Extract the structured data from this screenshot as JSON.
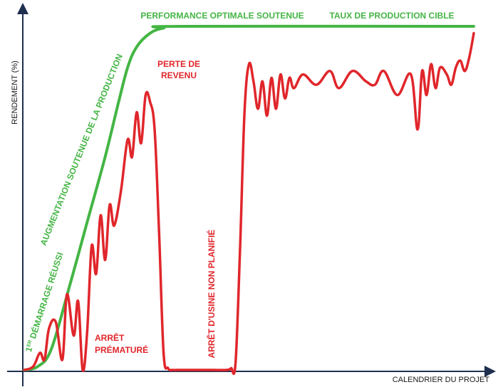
{
  "chart_data": {
    "type": "line",
    "title": "",
    "xlabel": "CALENDRIER DU PROJET",
    "ylabel": "RENDEMENT (%)",
    "xlim": [
      0,
      100
    ],
    "ylim": [
      0,
      100
    ],
    "grid": false,
    "colors": {
      "target": "#44b544",
      "actual": "#e0262b",
      "axis": "#1f2f4f"
    },
    "series": [
      {
        "key": "target",
        "x": [
          0,
          3,
          6,
          10,
          14,
          18,
          21,
          23,
          25,
          28,
          31,
          35,
          100
        ],
        "y": [
          0,
          1,
          6,
          24,
          43,
          62,
          78,
          88,
          94,
          98,
          99.5,
          100,
          100
        ]
      },
      {
        "key": "actual",
        "x": [
          0,
          2,
          3.5,
          4.5,
          5.5,
          7,
          8.5,
          9.5,
          11,
          12,
          13,
          14,
          15,
          16,
          17,
          18,
          19,
          20,
          21.5,
          23,
          24,
          25,
          26,
          27,
          28,
          29,
          30,
          31,
          32,
          33,
          34,
          35,
          36,
          37,
          38,
          39,
          40,
          42,
          45,
          46,
          47,
          48,
          49,
          50,
          51,
          52,
          53,
          54,
          55,
          56,
          57,
          58,
          59,
          60,
          62,
          65,
          68,
          70,
          73,
          76,
          78,
          80,
          83,
          86,
          87.5,
          88.5,
          89.5,
          90.5,
          91.5,
          92.5,
          94,
          95,
          96,
          97,
          98,
          99,
          100
        ],
        "y": [
          0,
          1,
          5,
          3,
          12,
          14,
          3,
          22,
          10,
          20,
          0,
          11,
          36,
          28,
          45,
          32,
          48,
          42,
          52,
          67,
          62,
          75,
          66,
          80,
          78,
          70,
          40,
          5,
          0.5,
          0,
          0,
          0,
          0,
          0,
          0,
          0,
          0,
          0,
          0,
          0.5,
          2,
          35,
          75,
          89,
          84,
          76,
          84,
          74,
          85,
          76,
          86,
          79,
          85,
          82,
          86,
          83,
          87,
          82,
          87,
          84,
          83,
          87,
          80,
          86,
          70,
          87,
          80,
          89,
          82,
          88,
          86,
          83,
          88,
          90,
          87,
          91,
          98
        ]
      }
    ],
    "annotations": {
      "optimal": "PERFORMANCE OPTIMALE SOUTENUE",
      "target_rate": "TAUX DE PRODUCTION CIBLE",
      "revenue_loss_1": "PERTE DE",
      "revenue_loss_2": "REVENU",
      "ramp_up": "AUGMENTATION  SOUTENUE DE LA PRODUCTION",
      "startup_pre": "1",
      "startup_sup": "ER",
      "startup_post": " DÉMARRAGE RÉUSSI",
      "premature_1": "ARRÊT",
      "premature_2": "PRÉMATURÉ",
      "unplanned": "ARRÊT D'USINE  NON PLANIFIÉ"
    }
  }
}
